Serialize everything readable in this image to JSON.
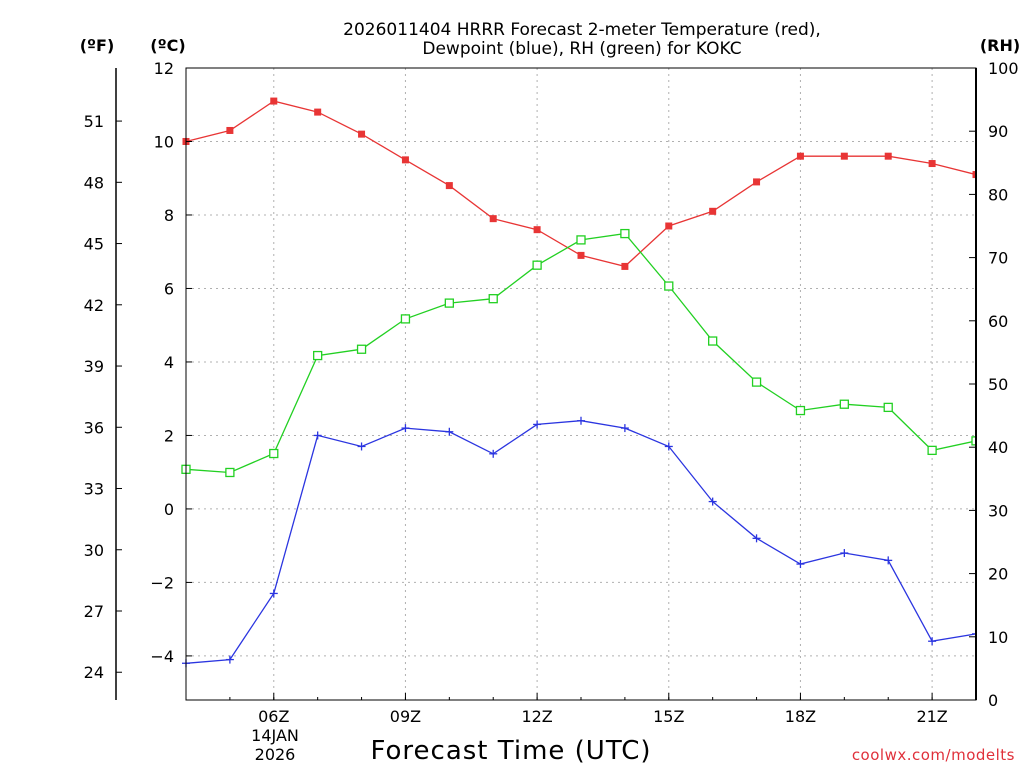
{
  "chart_data": {
    "type": "line",
    "title_line1": "2026011404 HRRR Forecast 2-meter Temperature (red),",
    "title_line2": "Dewpoint (blue), RH (green) for KOKC",
    "xlabel": "Forecast Time (UTC)",
    "credit": "coolwx.com/modelts",
    "unit_f": "(ºF)",
    "unit_c": "(ºC)",
    "unit_rh": "(RH)",
    "date_line1": "14JAN",
    "date_line2": "2026",
    "x_hours": [
      4,
      5,
      6,
      7,
      8,
      9,
      10,
      11,
      12,
      13,
      14,
      15,
      16,
      17,
      18,
      19,
      20,
      21,
      22
    ],
    "xlim": [
      4,
      22
    ],
    "x_ticks": [
      {
        "hour": 6,
        "label": "06Z"
      },
      {
        "hour": 9,
        "label": "09Z"
      },
      {
        "hour": 12,
        "label": "12Z"
      },
      {
        "hour": 15,
        "label": "15Z"
      },
      {
        "hour": 18,
        "label": "18Z"
      },
      {
        "hour": 21,
        "label": "21Z"
      }
    ],
    "ylim_c": [
      -5.2,
      12
    ],
    "yticks_c": [
      "-4",
      "-2",
      "0",
      "2",
      "4",
      "6",
      "8",
      "10",
      "12"
    ],
    "yticks_f": [
      "24",
      "27",
      "30",
      "33",
      "36",
      "39",
      "42",
      "45",
      "48",
      "51"
    ],
    "ylim_rh": [
      0,
      100
    ],
    "yticks_rh": [
      "0",
      "10",
      "20",
      "30",
      "40",
      "50",
      "60",
      "70",
      "80",
      "90",
      "100"
    ],
    "series": [
      {
        "name": "Temperature",
        "axis": "c",
        "color": "#e83535",
        "marker": "filled-square",
        "values": [
          10.0,
          10.3,
          11.1,
          10.8,
          10.2,
          9.5,
          8.8,
          7.9,
          7.6,
          6.9,
          6.6,
          7.7,
          8.1,
          8.9,
          9.6,
          9.6,
          9.6,
          9.4,
          9.1
        ]
      },
      {
        "name": "Dewpoint",
        "axis": "c",
        "color": "#2b35e0",
        "marker": "plus",
        "values": [
          -4.2,
          -4.1,
          -2.3,
          2.0,
          1.7,
          2.2,
          2.1,
          1.5,
          2.3,
          2.4,
          2.2,
          1.7,
          0.2,
          -0.8,
          -1.5,
          -1.2,
          -1.4,
          -3.6,
          -3.4
        ]
      },
      {
        "name": "RH",
        "axis": "rh",
        "color": "#22d022",
        "marker": "open-square",
        "values": [
          36.5,
          36.0,
          39.0,
          54.5,
          55.5,
          60.3,
          62.8,
          63.5,
          68.8,
          72.8,
          73.8,
          65.5,
          56.8,
          50.3,
          45.8,
          46.8,
          46.3,
          39.5,
          41.0
        ]
      }
    ]
  }
}
